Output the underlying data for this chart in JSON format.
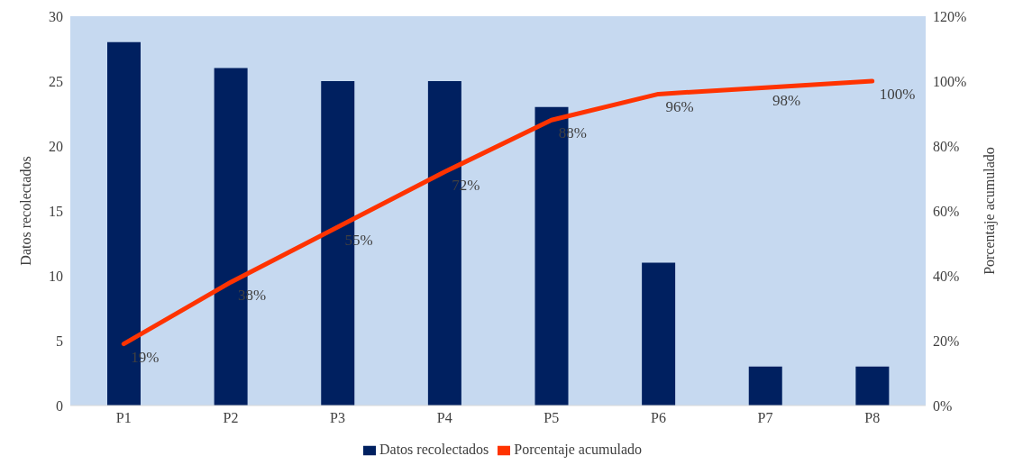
{
  "chart_data": {
    "type": "bar",
    "categories": [
      "P1",
      "P2",
      "P3",
      "P4",
      "P5",
      "P6",
      "P7",
      "P8"
    ],
    "ylabel": "Datos recolectados",
    "y2label": "Porcentaje acumulado",
    "ylim": [
      0,
      30
    ],
    "yticks": [
      0,
      5,
      10,
      15,
      20,
      25,
      30
    ],
    "y2lim": [
      0,
      120
    ],
    "y2ticks": [
      {
        "value": 0,
        "label": "0%"
      },
      {
        "value": 20,
        "label": "20%"
      },
      {
        "value": 40,
        "label": "40%"
      },
      {
        "value": 60,
        "label": "60%"
      },
      {
        "value": 80,
        "label": "80%"
      },
      {
        "value": 100,
        "label": "100%"
      },
      {
        "value": 120,
        "label": "120%"
      }
    ],
    "series": [
      {
        "name": "Datos recolectados",
        "color": "#002060",
        "values": [
          28,
          26,
          25,
          25,
          23,
          11,
          3,
          3
        ]
      },
      {
        "name": "Porcentaje acumulado",
        "type": "line",
        "axis": "y2",
        "color": "#ff3300",
        "values": [
          19,
          38,
          55,
          72,
          88,
          96,
          98,
          100
        ],
        "value_labels": [
          "19%",
          "38%",
          "55%",
          "72%",
          "88%",
          "96%",
          "98%",
          "100%"
        ]
      }
    ],
    "grid": false,
    "legend": "bottom",
    "marker": "none"
  }
}
